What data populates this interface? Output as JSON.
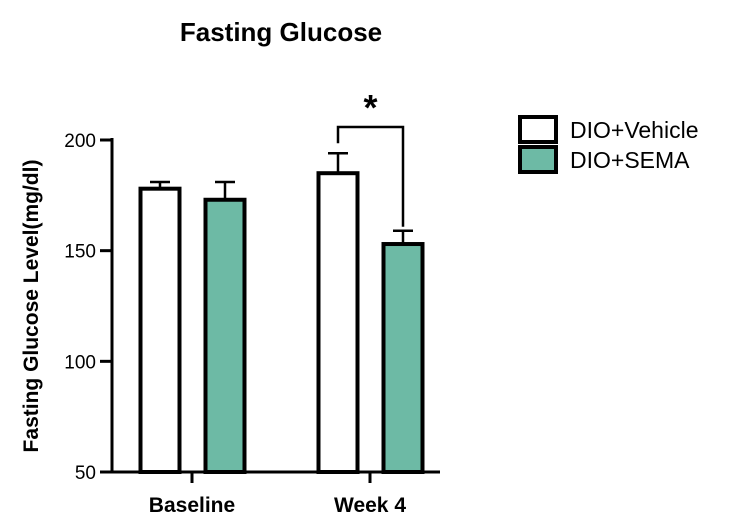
{
  "chart_data": {
    "type": "bar",
    "title": "Fasting Glucose",
    "ylabel": "Fasting Glucose Level(mg/dl)",
    "xlabel": "",
    "categories": [
      "Baseline",
      "Week 4"
    ],
    "ylim": [
      50,
      200
    ],
    "yticks": [
      50,
      100,
      150,
      200
    ],
    "series": [
      {
        "name": "DIO+Vehicle",
        "values": [
          178,
          185
        ],
        "errors": [
          3,
          9
        ],
        "color": "#ffffff"
      },
      {
        "name": "DIO+SEMA",
        "values": [
          173,
          153
        ],
        "errors": [
          8,
          6
        ],
        "color": "#6dbaa5"
      }
    ],
    "annotations": [
      {
        "text": "*",
        "category": "Week 4",
        "between": [
          "DIO+Vehicle",
          "DIO+SEMA"
        ]
      }
    ],
    "legend_position": "top-right",
    "grid": false
  }
}
